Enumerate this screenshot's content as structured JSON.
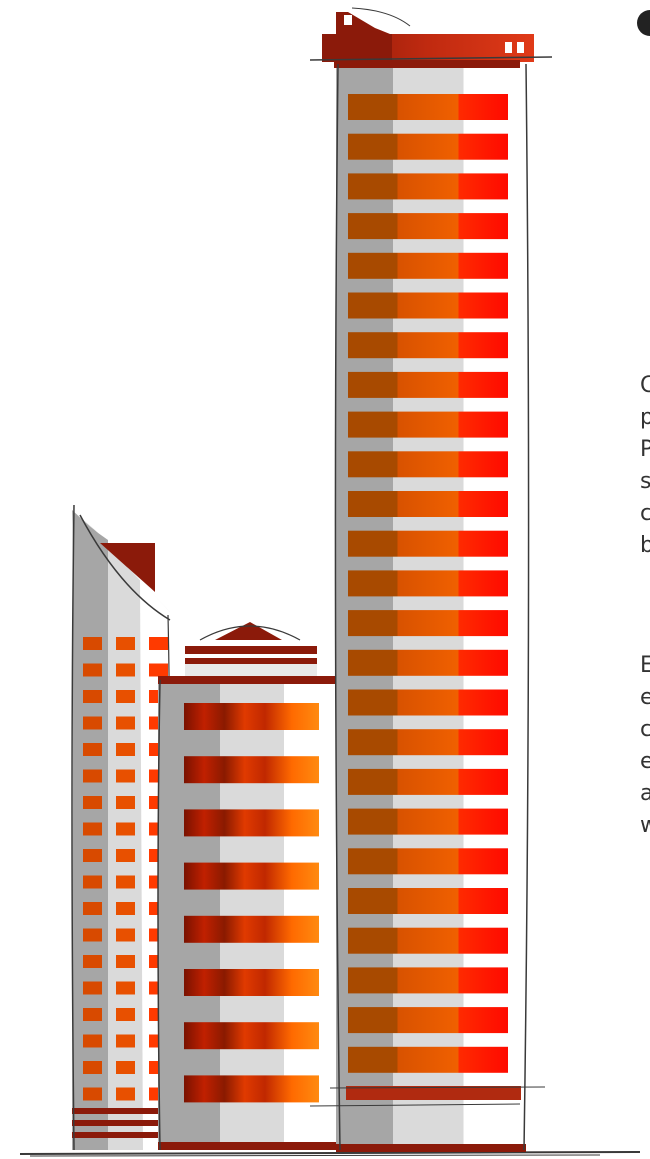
{
  "colors": {
    "wall_dark": "#A6A6A6",
    "wall_mid": "#DADADA",
    "wall_light": "#FFFFFF",
    "band_left": "#A84A00",
    "band_mid": "#E05A00",
    "band_right": "#FF1A00",
    "roof": "#8B1A0A",
    "sketch": "#3A3A3A"
  },
  "side_text": {
    "para1_lines": [
      "C",
      "p",
      "P",
      "s",
      "c",
      "b"
    ],
    "para2_lines": [
      "E",
      "e",
      "c",
      "e",
      "a",
      "w"
    ]
  }
}
